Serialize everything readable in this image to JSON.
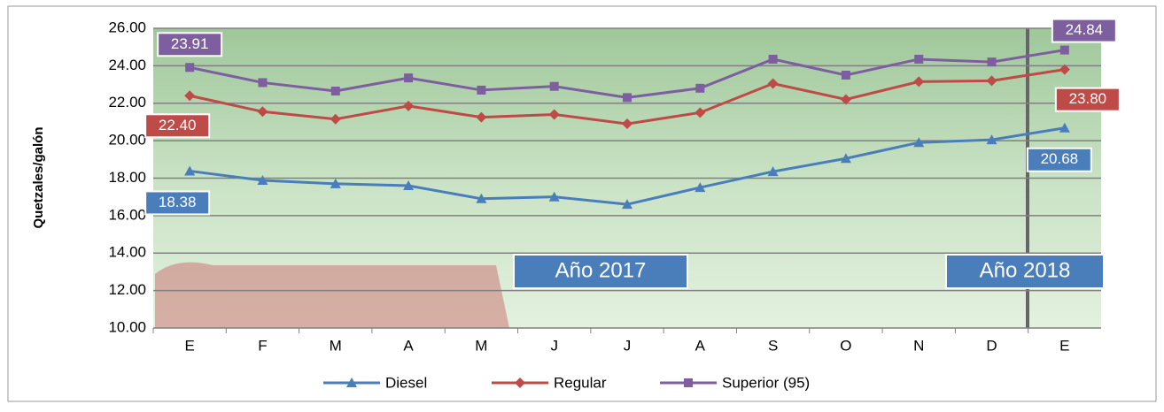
{
  "chart_data": {
    "type": "line",
    "y_label": "Quetzales/galón",
    "categories": [
      "E",
      "F",
      "M",
      "A",
      "M",
      "J",
      "J",
      "A",
      "S",
      "O",
      "N",
      "D",
      "E"
    ],
    "series": [
      {
        "name": "Diesel",
        "color": "#4a7ebb",
        "values": [
          18.38,
          17.88,
          17.7,
          17.6,
          16.9,
          17.0,
          16.6,
          17.5,
          18.35,
          19.05,
          19.9,
          20.05,
          20.68
        ],
        "value_labels": [
          "18.38",
          null,
          null,
          null,
          null,
          null,
          null,
          null,
          null,
          null,
          null,
          null,
          "20.68"
        ]
      },
      {
        "name": "Regular",
        "color": "#be4b48",
        "values": [
          22.4,
          21.55,
          21.15,
          21.85,
          21.25,
          21.4,
          20.9,
          21.5,
          23.05,
          22.2,
          23.15,
          23.2,
          23.8
        ],
        "value_labels": [
          "22.40",
          null,
          null,
          null,
          null,
          null,
          null,
          null,
          null,
          null,
          null,
          null,
          "23.80"
        ]
      },
      {
        "name": "Superior (95)",
        "color": "#7d5fa0",
        "values": [
          23.91,
          23.1,
          22.65,
          23.35,
          22.7,
          22.9,
          22.3,
          22.8,
          24.35,
          23.5,
          24.35,
          24.2,
          24.84
        ],
        "value_labels": [
          "23.91",
          null,
          null,
          null,
          null,
          null,
          null,
          null,
          null,
          null,
          null,
          null,
          "24.84"
        ]
      }
    ],
    "ylim": [
      10,
      26
    ],
    "yticks": [
      {
        "value": 10,
        "label": "10.00"
      },
      {
        "value": 12,
        "label": "12.00"
      },
      {
        "value": 14,
        "label": "14.00"
      },
      {
        "value": 16,
        "label": "16.00"
      },
      {
        "value": 18,
        "label": "18.00"
      },
      {
        "value": 20,
        "label": "20.00"
      },
      {
        "value": 22,
        "label": "22.00"
      },
      {
        "value": 24,
        "label": "24.00"
      },
      {
        "value": 26,
        "label": "26.00"
      }
    ],
    "grid": true,
    "annotations": [
      "Año 2017",
      "Año 2018"
    ],
    "legend": "bottom"
  }
}
